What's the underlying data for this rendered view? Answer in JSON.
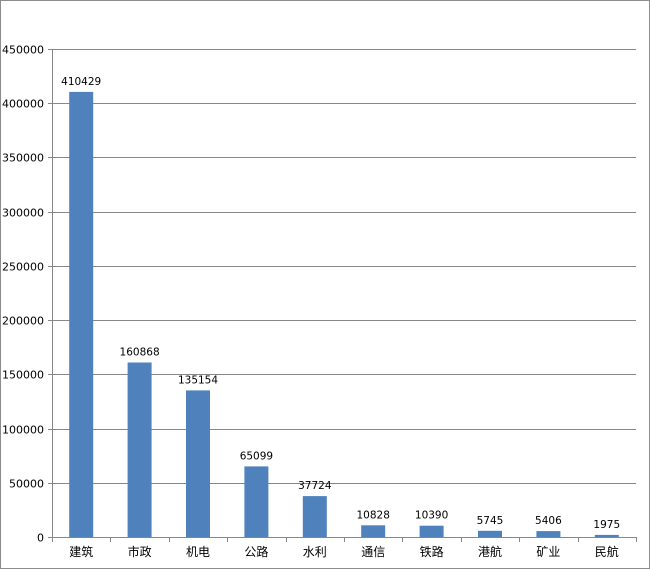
{
  "chart_data": {
    "type": "bar",
    "title": "",
    "xlabel": "",
    "ylabel": "",
    "categories": [
      "建筑",
      "市政",
      "机电",
      "公路",
      "水利",
      "通信",
      "铁路",
      "港航",
      "矿业",
      "民航"
    ],
    "values": [
      410429,
      160868,
      135154,
      65099,
      37724,
      10828,
      10390,
      5745,
      5406,
      1975
    ],
    "data_labels": [
      "410429",
      "160868",
      "135154",
      "65099",
      "37724",
      "10828",
      "10390",
      "5745",
      "5406",
      "1975"
    ],
    "ylim": [
      0,
      450000
    ],
    "yticks": [
      0,
      50000,
      100000,
      150000,
      200000,
      250000,
      300000,
      350000,
      400000,
      450000
    ],
    "ytick_labels": [
      "0",
      "50000",
      "100000",
      "150000",
      "200000",
      "250000",
      "300000",
      "350000",
      "400000",
      "450000"
    ],
    "grid": "horizontal",
    "legend": "none",
    "colors": {
      "bar": "#4f81bd",
      "grid": "#878787",
      "axis": "#878787",
      "frame": "#8c8c8c"
    }
  }
}
